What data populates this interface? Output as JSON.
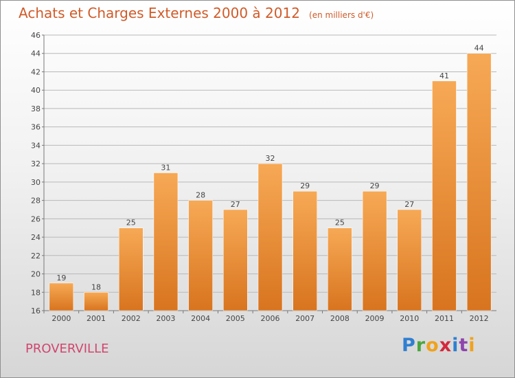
{
  "chart_data": {
    "type": "bar",
    "title": "Achats et Charges Externes 2000 à 2012",
    "subtitle": "(en milliers d'€)",
    "categories": [
      "2000",
      "2001",
      "2002",
      "2003",
      "2004",
      "2005",
      "2006",
      "2007",
      "2008",
      "2009",
      "2010",
      "2011",
      "2012"
    ],
    "values": [
      19,
      18,
      25,
      31,
      28,
      27,
      32,
      29,
      25,
      29,
      27,
      41,
      44
    ],
    "ylim": [
      16,
      46
    ],
    "yticks": [
      16,
      18,
      20,
      22,
      24,
      26,
      28,
      30,
      32,
      34,
      36,
      38,
      40,
      42,
      44,
      46
    ],
    "grid": true,
    "bar_color": "#f0953c",
    "xlabel": "",
    "ylabel": ""
  },
  "location": "PROVERVILLE",
  "logo": {
    "letters": [
      "P",
      "r",
      "o",
      "x",
      "i",
      "t",
      "i"
    ],
    "colors": [
      "#2f7fd1",
      "#4aa63c",
      "#f0a21c",
      "#d4283c",
      "#2f7fd1",
      "#8e44ad",
      "#f0a21c"
    ]
  },
  "colors": {
    "title": "#d05a28",
    "location": "#d0466e",
    "grid": "#b8b8b8",
    "axis": "#777777"
  }
}
